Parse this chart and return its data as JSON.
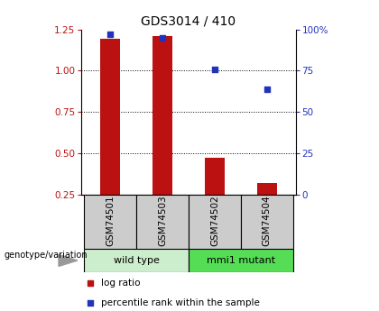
{
  "title": "GDS3014 / 410",
  "samples": [
    "GSM74501",
    "GSM74503",
    "GSM74502",
    "GSM74504"
  ],
  "log_ratio": [
    1.195,
    1.21,
    0.47,
    0.32
  ],
  "percentile_rank": [
    97,
    95,
    76,
    64
  ],
  "log_ratio_baseline": 0.25,
  "ylim_left": [
    0.25,
    1.25
  ],
  "ylim_right": [
    0,
    100
  ],
  "yticks_left": [
    0.25,
    0.5,
    0.75,
    1.0,
    1.25
  ],
  "yticks_right": [
    0,
    25,
    50,
    75,
    100
  ],
  "bar_color": "#bb1111",
  "dot_color": "#2233bb",
  "group1_label": "wild type",
  "group2_label": "mmi1 mutant",
  "group1_indices": [
    0,
    1
  ],
  "group2_indices": [
    2,
    3
  ],
  "group1_bg": "#cceecc",
  "group2_bg": "#55dd55",
  "sample_bg": "#cccccc",
  "legend_bar_label": "log ratio",
  "legend_dot_label": "percentile rank within the sample",
  "genotype_label": "genotype/variation",
  "title_fontsize": 10,
  "tick_fontsize": 7.5,
  "sample_fontsize": 7.5,
  "group_fontsize": 8,
  "legend_fontsize": 7.5
}
